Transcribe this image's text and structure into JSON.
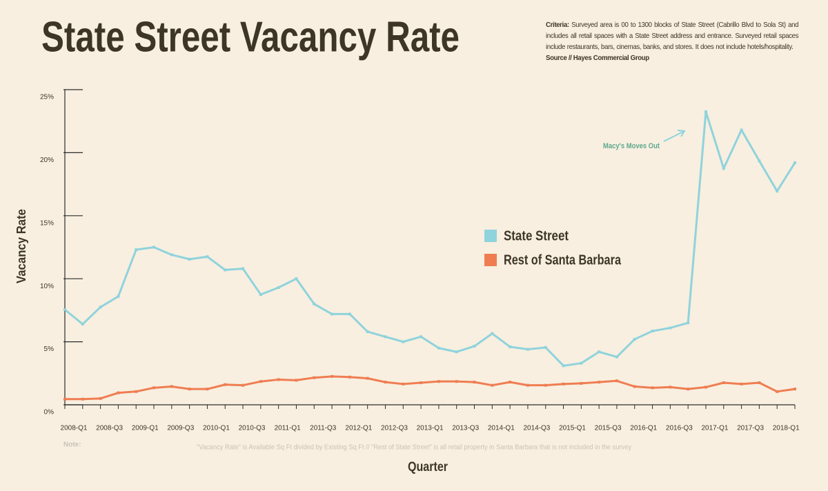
{
  "chart_data": {
    "type": "line",
    "title": "State Street Vacancy Rate",
    "criteria_label": "Criteria:",
    "criteria": "Surveyed area is 00 to 1300 blocks of State Street (Cabrillo Blvd to Sola St) and includes all retail spaces with a State Street address and entrance. Surveyed retail spaces include restaurants, bars, cinemas, banks, and stores. It does not include hotels/hospitality.",
    "source": "Source // Hayes Commercial Group",
    "annotation": "Macy's Moves Out",
    "y_label": "Vacancy Rate",
    "x_label": "Quarter",
    "note_label": "Note:",
    "note": "\"Vacancy Rate\" is Available Sq Ft divided by Existing Sq Ft // \"Rest of State Street\" is all retail property in Santa Barbara that is not included in the survey",
    "categories": [
      "2008-Q1",
      null,
      "2008-Q3",
      null,
      "2009-Q1",
      null,
      "2009-Q3",
      null,
      "2010-Q1",
      null,
      "2010-Q3",
      null,
      "2011-Q1",
      null,
      "2011-Q3",
      null,
      "2012-Q1",
      null,
      "2012-Q3",
      null,
      "2013-Q1",
      null,
      "2013-Q3",
      null,
      "2014-Q1",
      null,
      "2014-Q3",
      null,
      "2015-Q1",
      null,
      "2015-Q3",
      null,
      "2016-Q1",
      null,
      "2016-Q3",
      null,
      "2017-Q1",
      null,
      "2017-Q3",
      null,
      "2018-Q1",
      null
    ],
    "series": [
      {
        "name": "State Street",
        "color": "#8fd3dc",
        "values": [
          7.55,
          6.4,
          7.75,
          8.6,
          12.3,
          12.5,
          11.9,
          11.55,
          11.75,
          10.7,
          10.8,
          8.75,
          9.3,
          10.0,
          8.0,
          7.2,
          7.2,
          5.8,
          5.4,
          5.0,
          5.4,
          4.5,
          4.2,
          4.65,
          5.65,
          4.6,
          4.4,
          4.55,
          3.1,
          3.3,
          4.2,
          3.8,
          5.2,
          5.85,
          6.1,
          6.5,
          23.25,
          18.75,
          21.8,
          19.35,
          16.95,
          19.2
        ]
      },
      {
        "name": "Rest of Santa Barbara",
        "color": "#ef7d52",
        "values": [
          0.45,
          0.45,
          0.5,
          0.95,
          1.05,
          1.35,
          1.45,
          1.25,
          1.25,
          1.6,
          1.55,
          1.85,
          2.0,
          1.95,
          2.15,
          2.25,
          2.2,
          2.1,
          1.8,
          1.65,
          1.75,
          1.85,
          1.85,
          1.8,
          1.55,
          1.8,
          1.55,
          1.55,
          1.65,
          1.7,
          1.8,
          1.9,
          1.45,
          1.35,
          1.4,
          1.25,
          1.4,
          1.75,
          1.65,
          1.75,
          1.05,
          1.25
        ]
      }
    ],
    "ylim": [
      0,
      25
    ],
    "yticks": [
      {
        "value": 0,
        "label": "0%"
      },
      {
        "value": 5,
        "label": "5%"
      },
      {
        "value": 10,
        "label": "10%"
      },
      {
        "value": 15,
        "label": "15%"
      },
      {
        "value": 20,
        "label": "20%"
      },
      {
        "value": 25,
        "label": "25%"
      }
    ]
  }
}
